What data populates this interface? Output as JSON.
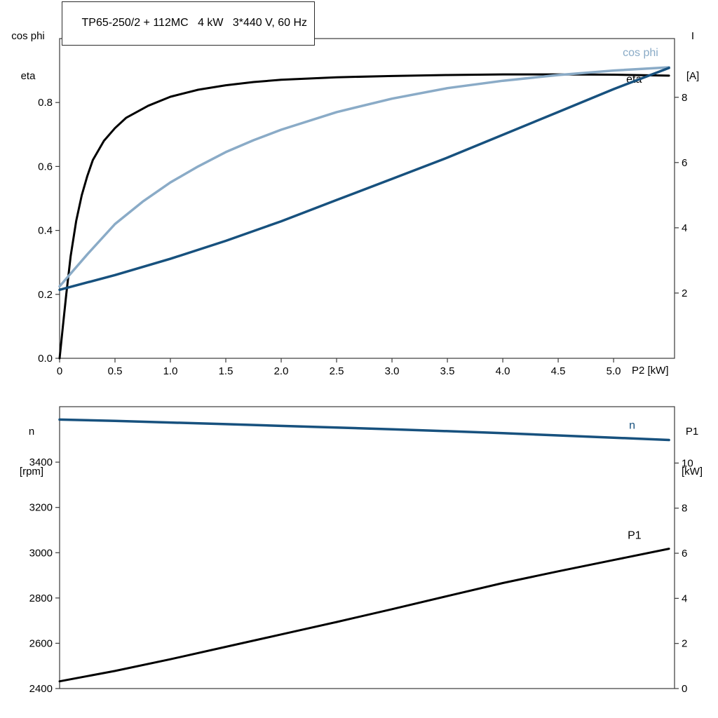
{
  "colors": {
    "black": "#000000",
    "dark_blue": "#17517e",
    "light_blue": "#8aabc7",
    "frame": "#3a3a3a",
    "background": "#ffffff"
  },
  "chart_data": [
    {
      "type": "line",
      "title": "TP65-250/2 + 112MC   4 kW   3*440 V, 60 Hz",
      "xlabel": "P2 [kW]",
      "grid": false,
      "legend": "curve-end-labels",
      "x_axis": {
        "lim": [
          0,
          5.55
        ],
        "ticks": [
          0,
          0.5,
          1.0,
          1.5,
          2.0,
          2.5,
          3.0,
          3.5,
          4.0,
          4.5,
          5.0
        ],
        "tick_labels": [
          "0",
          "0.5",
          "1.0",
          "1.5",
          "2.0",
          "2.5",
          "3.0",
          "3.5",
          "4.0",
          "4.5",
          "5.0"
        ]
      },
      "left_axis": {
        "label_lines": [
          "cos phi",
          "eta"
        ],
        "lim": [
          0,
          1.0
        ],
        "ticks": [
          0,
          0.2,
          0.4,
          0.6,
          0.8
        ],
        "tick_labels": [
          "0.0",
          "0.2",
          "0.4",
          "0.6",
          "0.8"
        ]
      },
      "right_axis": {
        "label_lines": [
          "I",
          "[A]"
        ],
        "lim": [
          0,
          9.8
        ],
        "ticks": [
          2,
          4,
          6,
          8
        ],
        "tick_labels": [
          "2",
          "4",
          "6",
          "8"
        ]
      },
      "series": [
        {
          "name": "eta",
          "axis": "left",
          "color": "#000000",
          "width": 3,
          "label": "eta",
          "label_dx": -61,
          "label_dy": 10,
          "x": [
            0,
            0.03,
            0.06,
            0.1,
            0.15,
            0.2,
            0.25,
            0.3,
            0.4,
            0.5,
            0.6,
            0.8,
            1.0,
            1.25,
            1.5,
            1.75,
            2.0,
            2.5,
            3.0,
            3.5,
            4.0,
            4.5,
            5.0,
            5.5
          ],
          "y": [
            0,
            0.1,
            0.2,
            0.32,
            0.43,
            0.51,
            0.57,
            0.62,
            0.68,
            0.72,
            0.752,
            0.79,
            0.818,
            0.84,
            0.854,
            0.864,
            0.871,
            0.879,
            0.883,
            0.886,
            0.888,
            0.888,
            0.887,
            0.884
          ]
        },
        {
          "name": "cos phi",
          "axis": "left",
          "color": "#8aabc7",
          "width": 3.5,
          "label": "cos phi",
          "label_dx": -66,
          "label_dy": -16,
          "x": [
            0,
            0.25,
            0.5,
            0.75,
            1.0,
            1.25,
            1.5,
            1.75,
            2.0,
            2.5,
            3.0,
            3.5,
            4.0,
            4.5,
            5.0,
            5.5
          ],
          "y": [
            0.225,
            0.325,
            0.42,
            0.49,
            0.55,
            0.6,
            0.645,
            0.682,
            0.715,
            0.77,
            0.812,
            0.845,
            0.868,
            0.886,
            0.9,
            0.91
          ]
        },
        {
          "name": "I",
          "axis": "right",
          "color": "#17517e",
          "width": 3.5,
          "label": "",
          "label_dx": 0,
          "label_dy": 0,
          "x": [
            0,
            0.5,
            1.0,
            1.5,
            2.0,
            2.5,
            3.0,
            3.5,
            4.0,
            4.5,
            5.0,
            5.5
          ],
          "y": [
            2.1,
            2.55,
            3.05,
            3.6,
            4.2,
            4.85,
            5.5,
            6.15,
            6.85,
            7.55,
            8.25,
            8.9
          ]
        }
      ]
    },
    {
      "type": "line",
      "title": "",
      "xlabel": "",
      "grid": false,
      "legend": "curve-end-labels",
      "x_axis": {
        "lim": [
          0,
          5.55
        ],
        "ticks": [],
        "tick_labels": []
      },
      "left_axis": {
        "label_lines": [
          "n",
          "[rpm]"
        ],
        "lim": [
          2400,
          3645
        ],
        "ticks": [
          2400,
          2600,
          2800,
          3000,
          3200,
          3400
        ],
        "tick_labels": [
          "2400",
          "2600",
          "2800",
          "3000",
          "3200",
          "3400"
        ]
      },
      "right_axis": {
        "label_lines": [
          "P1",
          "[kW]"
        ],
        "lim": [
          0,
          12.5
        ],
        "ticks": [
          0,
          2,
          4,
          6,
          8,
          10
        ],
        "tick_labels": [
          "0",
          "2",
          "4",
          "6",
          "8",
          "10"
        ]
      },
      "series": [
        {
          "name": "n",
          "axis": "left",
          "color": "#17517e",
          "width": 3.5,
          "label": "n",
          "label_dx": -57,
          "label_dy": -16,
          "x": [
            0,
            0.5,
            1,
            1.5,
            2,
            2.5,
            3,
            3.5,
            4,
            4.5,
            5,
            5.5
          ],
          "y": [
            3588,
            3582,
            3575,
            3568,
            3560,
            3553,
            3545,
            3537,
            3528,
            3518,
            3508,
            3498
          ]
        },
        {
          "name": "P1",
          "axis": "right",
          "color": "#000000",
          "width": 3,
          "label": "P1",
          "label_dx": -59,
          "label_dy": -14,
          "x": [
            0,
            0.5,
            1,
            1.5,
            2,
            2.5,
            3,
            3.5,
            4,
            4.5,
            5,
            5.5
          ],
          "y": [
            0.32,
            0.78,
            1.3,
            1.85,
            2.4,
            2.95,
            3.52,
            4.1,
            4.68,
            5.2,
            5.7,
            6.2
          ]
        }
      ]
    }
  ]
}
